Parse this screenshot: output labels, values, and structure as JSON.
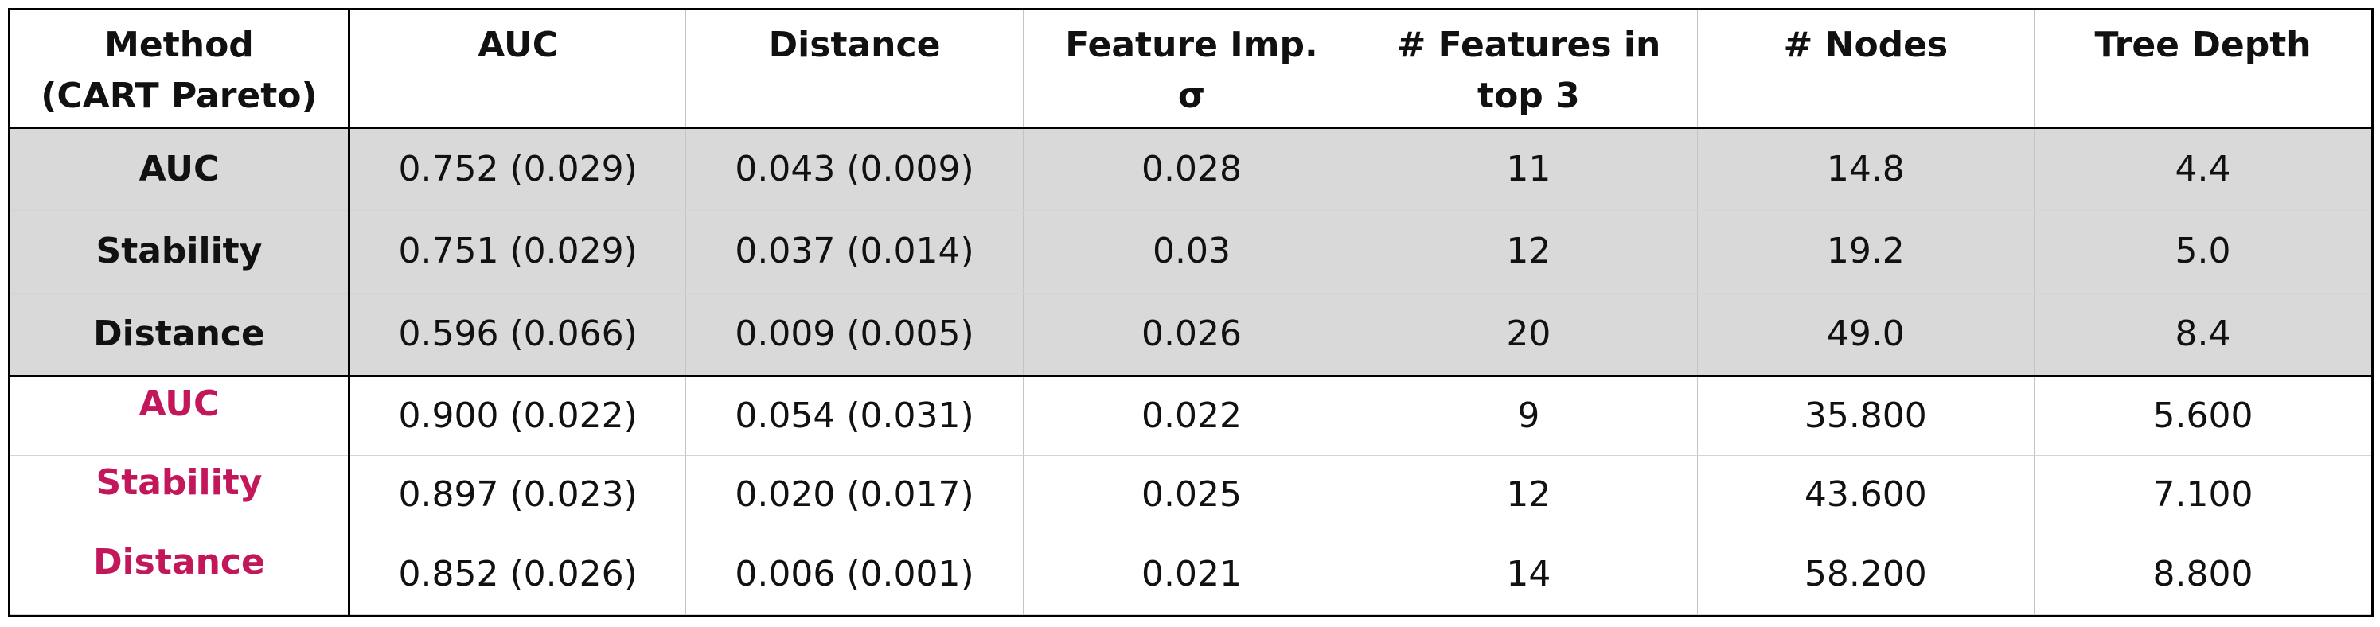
{
  "chart_data": {
    "type": "table",
    "columns": [
      "Method\n(CART Pareto)",
      "AUC",
      "Distance",
      "Feature Imp.\nσ",
      "# Features in\ntop 3",
      "# Nodes",
      "Tree Depth"
    ],
    "rows": [
      {
        "method": "AUC",
        "auc": "0.752 (0.029)",
        "distance": "0.043 (0.009)",
        "feature_imp_sigma": "0.028",
        "features_top3": "11",
        "nodes": "14.8",
        "tree_depth": "4.4"
      },
      {
        "method": "Stability",
        "auc": "0.751 (0.029)",
        "distance": "0.037 (0.014)",
        "feature_imp_sigma": "0.03",
        "features_top3": "12",
        "nodes": "19.2",
        "tree_depth": "5.0"
      },
      {
        "method": "Distance",
        "auc": "0.596 (0.066)",
        "distance": "0.009 (0.005)",
        "feature_imp_sigma": "0.026",
        "features_top3": "20",
        "nodes": "49.0",
        "tree_depth": "8.4"
      },
      {
        "method": "AUC",
        "auc": "0.900 (0.022)",
        "distance": "0.054 (0.031)",
        "feature_imp_sigma": "0.022",
        "features_top3": "9",
        "nodes": "35.800",
        "tree_depth": "5.600"
      },
      {
        "method": "Stability",
        "auc": "0.897 (0.023)",
        "distance": "0.020 (0.017)",
        "feature_imp_sigma": "0.025",
        "features_top3": "12",
        "nodes": "43.600",
        "tree_depth": "7.100"
      },
      {
        "method": "Distance",
        "auc": "0.852 (0.026)",
        "distance": "0.006 (0.001)",
        "feature_imp_sigma": "0.021",
        "features_top3": "14",
        "nodes": "58.200",
        "tree_depth": "8.800"
      }
    ]
  },
  "colors": {
    "shaded_group_background": "#d9d9d9",
    "highlight_method_text": "#c2185b",
    "border": "#000000"
  }
}
